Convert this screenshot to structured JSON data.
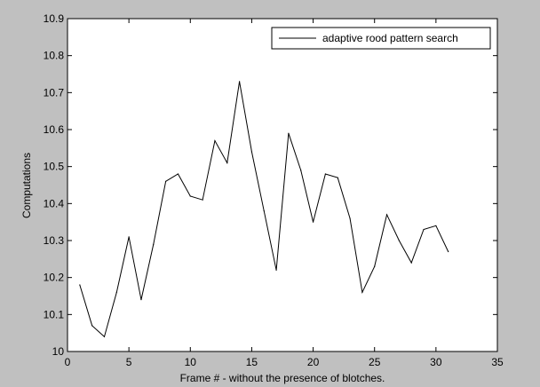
{
  "chart_data": {
    "type": "line",
    "xlabel": "Frame # - without the presence of blotches.",
    "ylabel": "Computations",
    "xlim": [
      0,
      35
    ],
    "ylim": [
      10,
      10.9
    ],
    "x_ticks": [
      "0",
      "5",
      "10",
      "15",
      "20",
      "25",
      "30",
      "35"
    ],
    "y_ticks": [
      "10",
      "10.1",
      "10.2",
      "10.3",
      "10.4",
      "10.5",
      "10.6",
      "10.7",
      "10.8",
      "10.9"
    ],
    "grid": false,
    "legend_position": "top-right",
    "series": [
      {
        "name": "adaptive rood pattern search",
        "color": "#000000",
        "x": [
          1,
          2,
          3,
          4,
          5,
          6,
          7,
          8,
          9,
          10,
          11,
          12,
          13,
          14,
          15,
          16,
          17,
          18,
          19,
          20,
          21,
          22,
          23,
          24,
          25,
          26,
          27,
          28,
          29,
          30,
          31
        ],
        "y": [
          10.18,
          10.07,
          10.04,
          10.16,
          10.31,
          10.14,
          10.29,
          10.46,
          10.48,
          10.42,
          10.41,
          10.57,
          10.51,
          10.73,
          10.54,
          10.38,
          10.22,
          10.59,
          10.49,
          10.35,
          10.48,
          10.47,
          10.36,
          10.16,
          10.23,
          10.37,
          10.3,
          10.24,
          10.33,
          10.34,
          10.27
        ]
      }
    ]
  },
  "colors": {
    "figure_background": "#c0c0c0",
    "axes_background": "#ffffff",
    "line": "#000000"
  }
}
